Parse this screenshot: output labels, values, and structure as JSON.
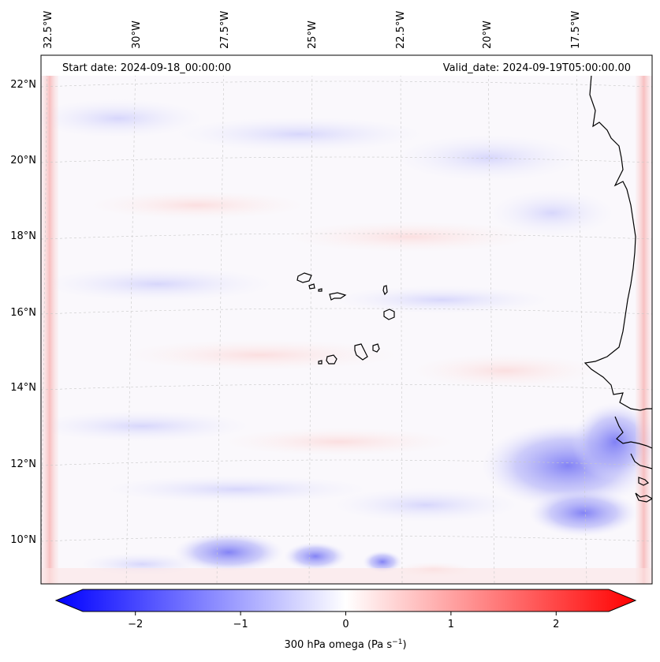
{
  "header": {
    "start_date": "Start date: 2024-09-18_00:00:00",
    "valid_date": "Valid_date: 2024-09-19T05:00:00.00"
  },
  "axes": {
    "lon_labels": [
      "32.5°W",
      "30°W",
      "27.5°W",
      "25°W",
      "22.5°W",
      "20°W",
      "17.5°W"
    ],
    "lat_labels": [
      "22°N",
      "20°N",
      "18°N",
      "16°N",
      "14°N",
      "12°N",
      "10°N"
    ]
  },
  "colorbar": {
    "label": "300 hPa omega (Pa s",
    "label_sup": "−1",
    "label_close": ")",
    "ticks": [
      "−2",
      "−1",
      "0",
      "1",
      "2"
    ],
    "tick_values": [
      -2,
      -1,
      0,
      1,
      2
    ],
    "range": [
      -2.6,
      2.6
    ],
    "colormap": "bwr",
    "colors": {
      "negative": "#0000ff",
      "zero": "#ffffff",
      "positive": "#ff0000"
    }
  },
  "map": {
    "field": "300 hPa omega",
    "coastline_color": "#000000",
    "gridline_color": "#c8c8c8"
  }
}
